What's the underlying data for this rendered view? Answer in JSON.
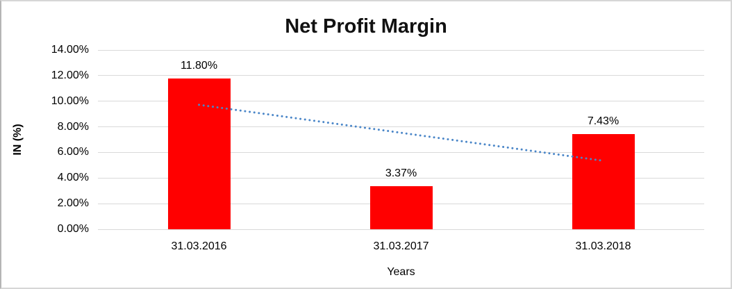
{
  "window": {
    "background": "#ffffff",
    "border_color": "#c9c9c9"
  },
  "chart_data": {
    "type": "bar",
    "title": "Net Profit Margin",
    "xlabel": "Years",
    "ylabel": "IN (%)",
    "categories": [
      "31.03.2016",
      "31.03.2017",
      "31.03.2018"
    ],
    "values": [
      11.8,
      3.37,
      7.43
    ],
    "data_labels": [
      "11.80%",
      "3.37%",
      "7.43%"
    ],
    "ylim": [
      0,
      14
    ],
    "ytick_step": 2,
    "ytick_labels": [
      "0.00%",
      "2.00%",
      "4.00%",
      "6.00%",
      "8.00%",
      "10.00%",
      "12.00%",
      "14.00%"
    ],
    "grid": true,
    "legend": "none",
    "bar_color": "#ff0000",
    "gridline_color": "#d9d9d9",
    "label_color": "#000000",
    "trendline": {
      "style": "dotted",
      "color": "#4a86c8",
      "start_value": 9.72,
      "end_value": 5.35
    }
  }
}
